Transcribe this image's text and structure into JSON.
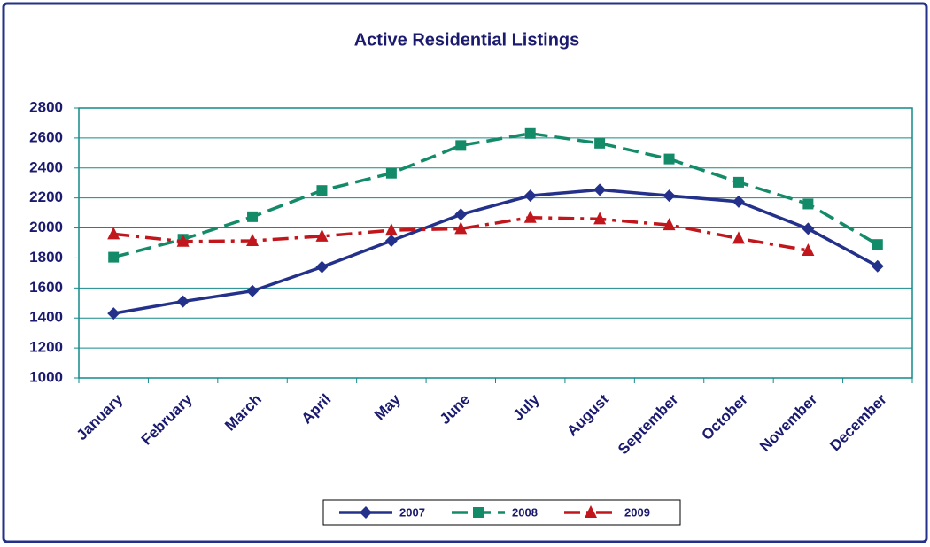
{
  "chart_data": {
    "type": "line",
    "title": "Active Residential Listings",
    "categories": [
      "January",
      "February",
      "March",
      "April",
      "May",
      "June",
      "July",
      "August",
      "September",
      "October",
      "November",
      "December"
    ],
    "series": [
      {
        "name": "2007",
        "color": "#23318a",
        "dash": "solid",
        "marker": "diamond",
        "values": [
          1430,
          1510,
          1580,
          1740,
          1915,
          2090,
          2215,
          2255,
          2215,
          2175,
          1995,
          1745
        ]
      },
      {
        "name": "2008",
        "color": "#138a68",
        "dash": "dashed",
        "marker": "square",
        "values": [
          1805,
          1925,
          2075,
          2250,
          2365,
          2550,
          2630,
          2565,
          2460,
          2305,
          2160,
          1890
        ]
      },
      {
        "name": "2009",
        "color": "#c0161c",
        "dash": "dashdot",
        "marker": "triangle",
        "values": [
          1960,
          1910,
          1915,
          1945,
          1985,
          1995,
          2070,
          2060,
          2020,
          1930,
          1850,
          null
        ]
      }
    ],
    "ylim": [
      1000,
      2800
    ],
    "yticks": [
      1000,
      1200,
      1400,
      1600,
      1800,
      2000,
      2200,
      2400,
      2600,
      2800
    ],
    "grid": true,
    "legend": "bottom"
  }
}
